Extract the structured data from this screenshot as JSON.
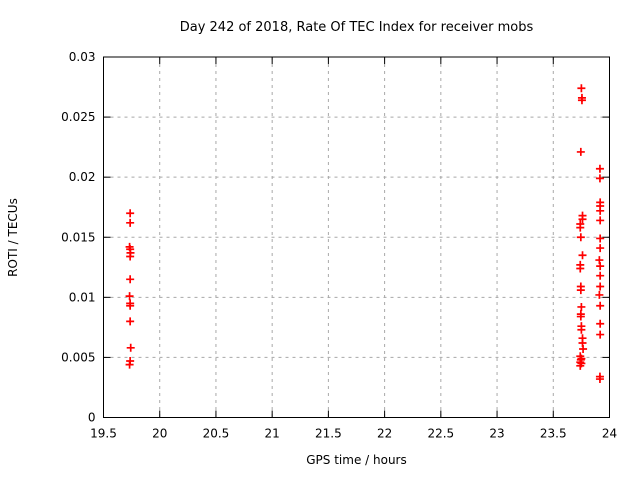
{
  "chart_data": {
    "type": "scatter",
    "title": "Day 242 of 2018, Rate Of TEC Index for receiver mobs",
    "xlabel": "GPS time / hours",
    "ylabel": "ROTI / TECUs",
    "xlim": [
      19.5,
      24
    ],
    "ylim": [
      0,
      0.03
    ],
    "grid": true,
    "legend": "none",
    "marker": {
      "shape": "plus",
      "color": "#ff0000",
      "size": 8
    },
    "grid_color": "#a8a8a8",
    "axis_color": "#000000",
    "xticks": [
      {
        "value": 19.5,
        "label": "19.5"
      },
      {
        "value": 20,
        "label": "20"
      },
      {
        "value": 20.5,
        "label": "20.5"
      },
      {
        "value": 21,
        "label": "21"
      },
      {
        "value": 21.5,
        "label": "21.5"
      },
      {
        "value": 22,
        "label": "22"
      },
      {
        "value": 22.5,
        "label": "22.5"
      },
      {
        "value": 23,
        "label": "23"
      },
      {
        "value": 23.5,
        "label": "23.5"
      },
      {
        "value": 24,
        "label": "24"
      }
    ],
    "yticks": [
      {
        "value": 0,
        "label": "0"
      },
      {
        "value": 0.005,
        "label": "0.005"
      },
      {
        "value": 0.01,
        "label": "0.01"
      },
      {
        "value": 0.015,
        "label": "0.015"
      },
      {
        "value": 0.02,
        "label": "0.02"
      },
      {
        "value": 0.025,
        "label": "0.025"
      },
      {
        "value": 0.03,
        "label": "0.03"
      }
    ],
    "points": [
      [
        19.737,
        0.017
      ],
      [
        19.737,
        0.0162
      ],
      [
        19.732,
        0.0142
      ],
      [
        19.737,
        0.014
      ],
      [
        19.74,
        0.0137
      ],
      [
        19.737,
        0.0134
      ],
      [
        19.737,
        0.0115
      ],
      [
        19.732,
        0.0101
      ],
      [
        19.737,
        0.0095
      ],
      [
        19.737,
        0.0093
      ],
      [
        19.737,
        0.008
      ],
      [
        19.742,
        0.0058
      ],
      [
        19.737,
        0.0047
      ],
      [
        19.732,
        0.0044
      ],
      [
        23.75,
        0.0274
      ],
      [
        23.755,
        0.0266
      ],
      [
        23.755,
        0.0264
      ],
      [
        23.745,
        0.0221
      ],
      [
        23.76,
        0.0168
      ],
      [
        23.76,
        0.0165
      ],
      [
        23.74,
        0.0161
      ],
      [
        23.74,
        0.0158
      ],
      [
        23.745,
        0.015
      ],
      [
        23.76,
        0.0135
      ],
      [
        23.74,
        0.0127
      ],
      [
        23.74,
        0.0124
      ],
      [
        23.745,
        0.0109
      ],
      [
        23.745,
        0.0106
      ],
      [
        23.75,
        0.0092
      ],
      [
        23.745,
        0.0086
      ],
      [
        23.745,
        0.0084
      ],
      [
        23.75,
        0.0076
      ],
      [
        23.75,
        0.0073
      ],
      [
        23.76,
        0.0066
      ],
      [
        23.76,
        0.0062
      ],
      [
        23.765,
        0.0057
      ],
      [
        23.74,
        0.0051
      ],
      [
        23.75,
        0.0049
      ],
      [
        23.745,
        0.0048
      ],
      [
        23.74,
        0.0046
      ],
      [
        23.75,
        0.0045
      ],
      [
        23.74,
        0.0043
      ],
      [
        23.915,
        0.0207
      ],
      [
        23.915,
        0.0199
      ],
      [
        23.917,
        0.0179
      ],
      [
        23.917,
        0.0176
      ],
      [
        23.917,
        0.0172
      ],
      [
        23.917,
        0.0164
      ],
      [
        23.917,
        0.0149
      ],
      [
        23.917,
        0.0141
      ],
      [
        23.91,
        0.0131
      ],
      [
        23.917,
        0.0126
      ],
      [
        23.917,
        0.0118
      ],
      [
        23.917,
        0.0109
      ],
      [
        23.91,
        0.0102
      ],
      [
        23.917,
        0.0093
      ],
      [
        23.917,
        0.0078
      ],
      [
        23.917,
        0.0069
      ],
      [
        23.915,
        0.0034
      ],
      [
        23.915,
        0.0032
      ]
    ]
  }
}
